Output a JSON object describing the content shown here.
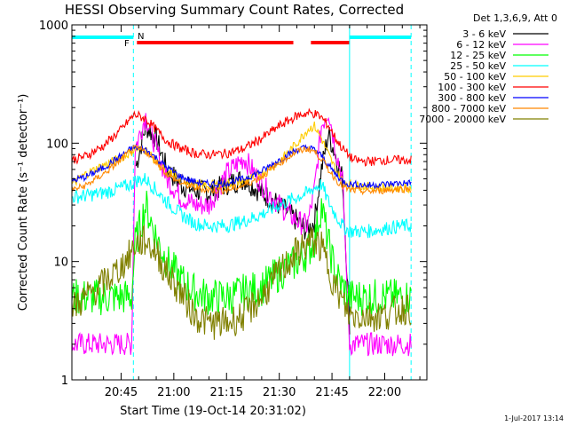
{
  "chart_data": {
    "type": "line",
    "title": "HESSI Observing Summary Count Rates, Corrected",
    "xlabel": "Start Time (19-Oct-14 20:31:02)",
    "ylabel": "Corrected Count Rate (s⁻¹ detector⁻¹)",
    "y_scale": "log",
    "ylim": [
      1,
      1000
    ],
    "xlim_minutes_after_20_00": [
      31,
      132
    ],
    "x_tick_labels": [
      "20:45",
      "21:00",
      "21:15",
      "21:30",
      "21:45",
      "22:00"
    ],
    "x_tick_minutes_after_20_00": [
      45,
      60,
      75,
      90,
      105,
      120
    ],
    "y_tick_labels": [
      "1",
      "10",
      "100",
      "1000"
    ],
    "y_tick_values": [
      1,
      10,
      100,
      1000
    ],
    "legend_header": "Det 1,3,6,9, Att 0",
    "legend_position": "top-right outside",
    "grid": false,
    "annotations": {
      "flare_flag": {
        "label": "F",
        "color": "#ff0000"
      },
      "night_flag": {
        "label": "N",
        "color": "#00ffff"
      },
      "night_intervals_minutes": [
        [
          31,
          48.5
        ],
        [
          110,
          127.5
        ]
      ],
      "flare_intervals_minutes": [
        [
          48.5,
          94
        ],
        [
          98,
          110
        ]
      ],
      "night_boundaries_minutes": [
        48.5,
        110,
        127.5
      ]
    },
    "x_minutes": [
      31,
      35,
      40,
      45,
      48,
      49,
      52,
      55,
      58,
      62,
      66,
      70,
      75,
      80,
      85,
      90,
      95,
      98,
      100,
      102,
      104,
      106,
      108,
      110,
      111,
      115,
      120,
      125,
      127.5
    ],
    "series": [
      {
        "name": "3 - 6 keV",
        "color": "#000000",
        "values": [
          null,
          null,
          null,
          null,
          null,
          60,
          140,
          110,
          60,
          45,
          40,
          38,
          45,
          50,
          38,
          30,
          22,
          18,
          22,
          60,
          120,
          80,
          50,
          3,
          null,
          null,
          null,
          null,
          null
        ]
      },
      {
        "name": "6 - 12 keV",
        "color": "#ff00ff",
        "values": [
          2,
          2,
          2,
          2,
          2,
          90,
          170,
          90,
          50,
          35,
          30,
          30,
          55,
          75,
          45,
          30,
          22,
          20,
          40,
          140,
          190,
          90,
          50,
          2,
          2,
          2,
          2,
          2,
          2
        ]
      },
      {
        "name": "12 - 25 keV",
        "color": "#00ff00",
        "values": [
          5,
          5,
          5,
          5,
          5,
          14,
          30,
          16,
          10,
          7,
          5.5,
          5,
          5,
          5.5,
          6,
          8,
          10,
          12,
          15,
          30,
          14,
          8,
          6,
          5,
          5,
          5,
          5,
          5,
          5
        ]
      },
      {
        "name": "25 - 50 keV",
        "color": "#00ffff",
        "values": [
          35,
          36,
          38,
          42,
          45,
          48,
          50,
          40,
          32,
          25,
          21,
          20,
          20,
          22,
          25,
          30,
          35,
          38,
          42,
          45,
          32,
          25,
          20,
          18,
          18,
          18,
          19,
          20,
          20
        ]
      },
      {
        "name": "50 - 100 keV",
        "color": "#ffcc00",
        "values": [
          45,
          55,
          65,
          75,
          85,
          90,
          88,
          70,
          58,
          50,
          45,
          44,
          45,
          48,
          55,
          70,
          100,
          130,
          140,
          110,
          80,
          60,
          48,
          45,
          44,
          43,
          42,
          42,
          42
        ]
      },
      {
        "name": "100 - 300 keV",
        "color": "#ff0000",
        "values": [
          72,
          78,
          95,
          130,
          165,
          175,
          160,
          130,
          105,
          90,
          82,
          80,
          82,
          90,
          110,
          140,
          170,
          180,
          178,
          165,
          140,
          110,
          90,
          78,
          72,
          70,
          72,
          72,
          72
        ]
      },
      {
        "name": "300 - 800 keV",
        "color": "#0000ff",
        "values": [
          48,
          52,
          62,
          78,
          90,
          92,
          88,
          75,
          62,
          52,
          47,
          45,
          46,
          50,
          58,
          72,
          88,
          92,
          88,
          78,
          65,
          55,
          48,
          45,
          45,
          44,
          45,
          46,
          46
        ]
      },
      {
        "name": "800 - 7000 keV",
        "color": "#ff8800",
        "values": [
          40,
          44,
          55,
          72,
          88,
          90,
          85,
          70,
          55,
          46,
          42,
          40,
          40,
          44,
          52,
          68,
          85,
          90,
          85,
          74,
          60,
          50,
          43,
          40,
          40,
          39,
          40,
          41,
          41
        ]
      },
      {
        "name": "7000 - 20000 keV",
        "color": "#808000",
        "values": [
          4,
          5,
          6.5,
          9,
          12,
          14,
          15,
          12,
          8,
          5.5,
          3.5,
          3,
          3,
          3.5,
          5,
          8,
          12,
          14,
          15,
          13,
          9,
          6,
          4.5,
          3.5,
          3.5,
          3.5,
          3.5,
          4,
          4
        ]
      }
    ],
    "timestamp": "1-Jul-2017 13:14"
  }
}
